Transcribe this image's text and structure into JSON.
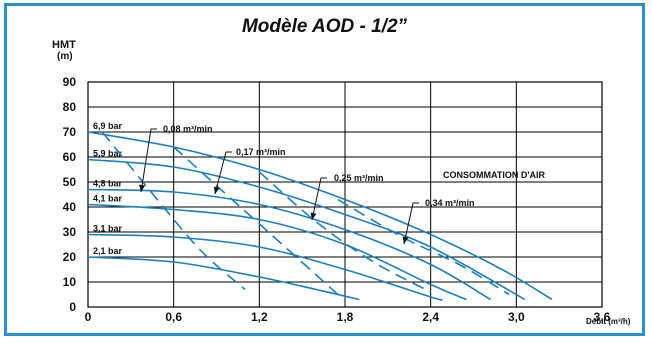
{
  "chart_data": {
    "type": "line",
    "title": "Modèle AOD - 1/2”",
    "ylabel": "HMT\n(m)",
    "xlabel": "Débit (m³/h)",
    "xlim": [
      0,
      3.6
    ],
    "ylim": [
      0,
      90
    ],
    "grid": true,
    "x_ticks": [
      "0",
      "0,6",
      "1,2",
      "1,8",
      "2,4",
      "3,0",
      "3,6"
    ],
    "y_ticks": [
      "0",
      "10",
      "20",
      "30",
      "40",
      "50",
      "60",
      "70",
      "80",
      "90"
    ],
    "annotation": "CONSOMMATION D'AIR",
    "colors": {
      "curve": "#1a7fc0",
      "frame": "#2b8fd0",
      "grid": "#000000",
      "text": "#111111"
    },
    "series": [
      {
        "name": "6,9 bar",
        "x": [
          0,
          0.6,
          1.2,
          1.8,
          2.4,
          2.9,
          3.25
        ],
        "y": [
          70,
          64,
          55,
          43,
          29,
          15,
          3
        ]
      },
      {
        "name": "5,9 bar",
        "x": [
          0,
          0.6,
          1.2,
          1.8,
          2.4,
          3.06
        ],
        "y": [
          59,
          56,
          48,
          37,
          24,
          3
        ]
      },
      {
        "name": "4,8 bar",
        "x": [
          0,
          0.6,
          1.2,
          1.8,
          2.4,
          2.82
        ],
        "y": [
          47,
          46,
          41,
          31,
          17,
          3
        ]
      },
      {
        "name": "4,1 bar",
        "x": [
          0,
          0.6,
          1.2,
          1.8,
          2.4,
          2.65
        ],
        "y": [
          41,
          39,
          35,
          25,
          9,
          3
        ]
      },
      {
        "name": "3,1 bar",
        "x": [
          0,
          0.6,
          1.2,
          1.8,
          2.4,
          2.48
        ],
        "y": [
          29,
          28,
          24,
          15,
          4,
          3
        ]
      },
      {
        "name": "2,1 bar",
        "x": [
          0,
          0.6,
          1.2,
          1.6,
          1.9
        ],
        "y": [
          20,
          18,
          12,
          7,
          3
        ]
      }
    ],
    "air_consumption": [
      {
        "name": "0,08 m³/min",
        "x": [
          0.1,
          0.5,
          0.8,
          1.1
        ],
        "y": [
          70,
          42,
          22,
          7
        ]
      },
      {
        "name": "0,17 m³/min",
        "x": [
          0.6,
          0.95,
          1.4,
          1.75
        ],
        "y": [
          64,
          46,
          23,
          5
        ]
      },
      {
        "name": "0,25 m³/min",
        "x": [
          1.2,
          1.6,
          2.0,
          2.4
        ],
        "y": [
          54,
          34,
          18,
          6
        ]
      },
      {
        "name": "0,34 m³/min",
        "x": [
          1.75,
          2.2,
          2.6,
          2.95
        ],
        "y": [
          43,
          28,
          17,
          5
        ]
      }
    ]
  }
}
